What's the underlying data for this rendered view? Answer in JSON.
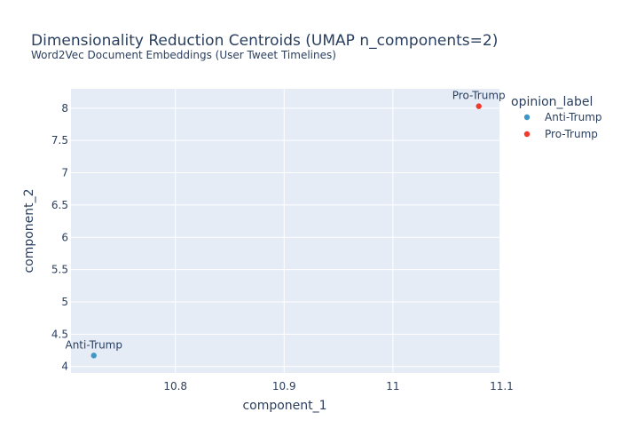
{
  "chart_data": {
    "type": "scatter",
    "title": "Dimensionality Reduction Centroids (UMAP n_components=2)",
    "subtitle": "Word2Vec Document Embeddings (User Tweet Timelines)",
    "xlabel": "component_1",
    "ylabel": "component_2",
    "xlim": [
      10.704,
      11.098
    ],
    "ylim": [
      3.9,
      8.3
    ],
    "xticks": [
      10.8,
      10.9,
      11,
      11.1
    ],
    "xtick_labels": [
      "10.8",
      "10.9",
      "11",
      "11.1"
    ],
    "yticks": [
      4,
      4.5,
      5,
      5.5,
      6,
      6.5,
      7,
      7.5,
      8
    ],
    "ytick_labels": [
      "4",
      "4.5",
      "5",
      "5.5",
      "6",
      "6.5",
      "7",
      "7.5",
      "8"
    ],
    "grid": true,
    "legend": {
      "title": "opinion_label",
      "placement": "right"
    },
    "series": [
      {
        "name": "Anti-Trump",
        "color": "#4196c8",
        "points": [
          {
            "x": 10.725,
            "y": 4.17,
            "label": "Anti-Trump"
          }
        ]
      },
      {
        "name": "Pro-Trump",
        "color": "#ef3b2c",
        "points": [
          {
            "x": 11.079,
            "y": 8.03,
            "label": "Pro-Trump"
          }
        ]
      }
    ]
  }
}
